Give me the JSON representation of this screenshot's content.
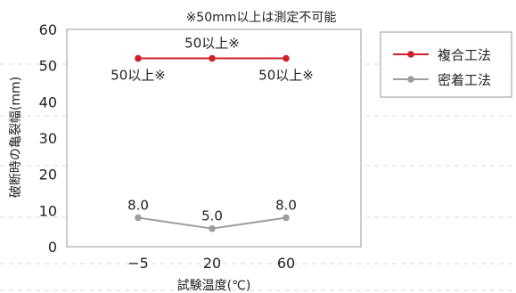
{
  "chart_data": {
    "type": "line",
    "title": "※50mm以上は測定不可能",
    "xlabel": "試験温度(℃)",
    "ylabel": "破断時の亀裂幅(mm)",
    "categories": [
      "−5",
      "20",
      "60"
    ],
    "ylim": [
      0,
      60
    ],
    "yticks": [
      "0",
      "10",
      "20",
      "30",
      "40",
      "50",
      "60"
    ],
    "grid": false,
    "legend_position": "right",
    "series": [
      {
        "name": "複合工法",
        "color": "#d0202a",
        "values": [
          52,
          52,
          52
        ],
        "labels": [
          "50以上※",
          "50以上※",
          "50以上※"
        ]
      },
      {
        "name": "密着工法",
        "color": "#9e9e9e",
        "values": [
          8.0,
          5.0,
          8.0
        ],
        "labels": [
          "8.0",
          "5.0",
          "8.0"
        ]
      }
    ]
  }
}
